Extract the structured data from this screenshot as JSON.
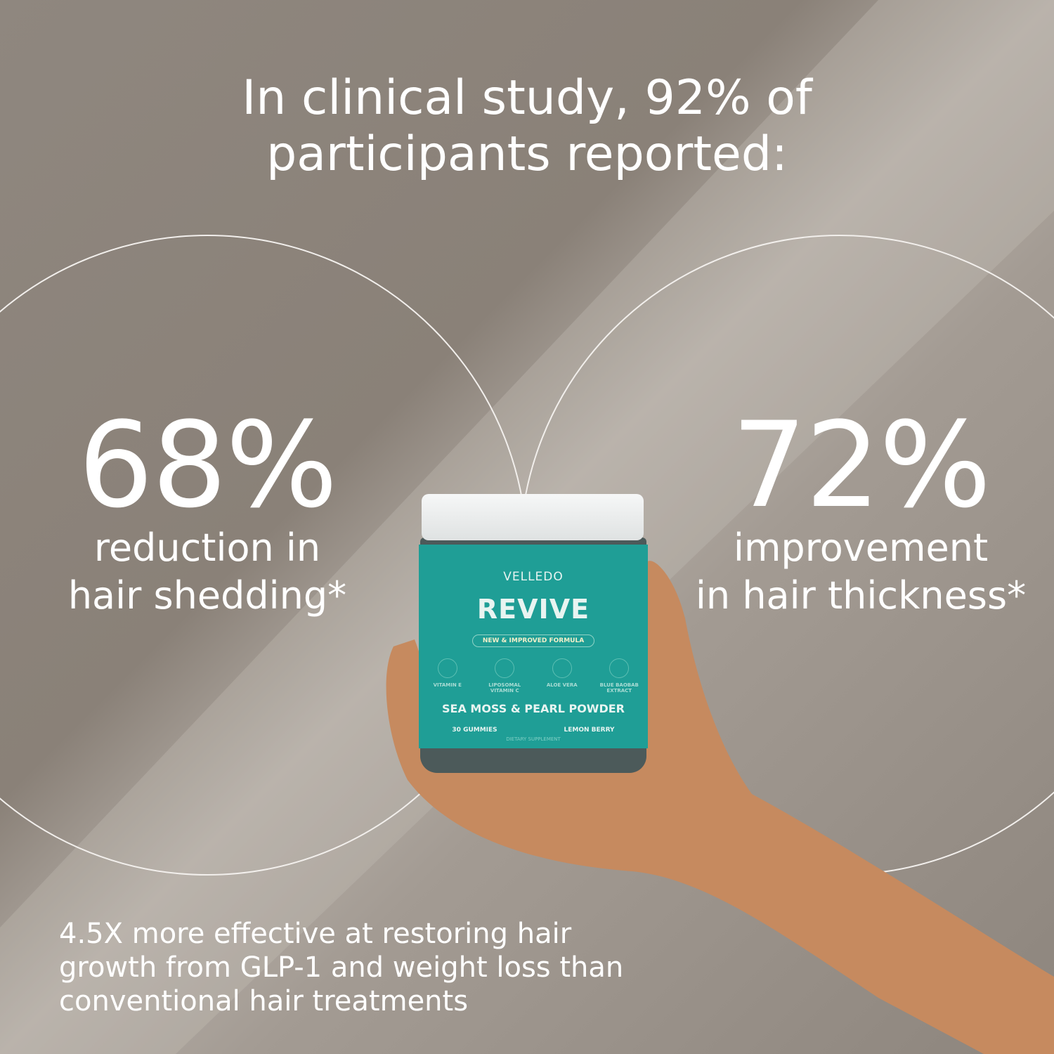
{
  "headline": {
    "line1": "In clinical study, 92% of",
    "line2": "participants reported:"
  },
  "stats": [
    {
      "value": "68%",
      "line1": "reduction in",
      "line2": "hair shedding*"
    },
    {
      "value": "72%",
      "line1": "improvement",
      "line2": "in hair thickness*"
    }
  ],
  "footnote": {
    "line1": "4.5X more effective at restoring hair",
    "line2": "growth from GLP-1 and weight loss than",
    "line3": "conventional hair treatments"
  },
  "product": {
    "brand": "VELLEDO",
    "name": "REVIVE",
    "badge": "NEW & IMPROVED FORMULA",
    "ingredients": [
      "VITAMIN E",
      "LIPOSOMAL VITAMIN C",
      "ALOE VERA",
      "BLUE BAOBAB EXTRACT"
    ],
    "feature": "SEA MOSS & PEARL POWDER",
    "count": "30 GUMMIES",
    "flavor": "LEMON BERRY",
    "type": "DIETARY SUPPLEMENT"
  },
  "colors": {
    "label": "#1f9e96",
    "background": "#8f877f",
    "text": "#ffffff"
  }
}
